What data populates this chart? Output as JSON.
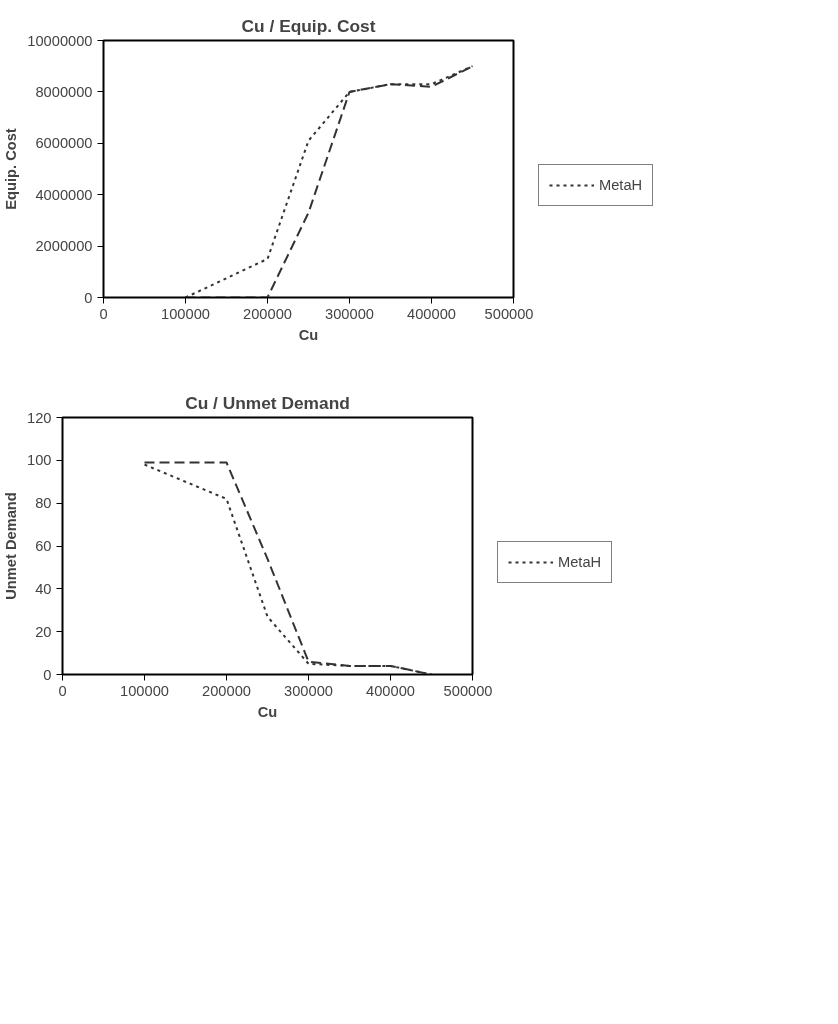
{
  "chart_data": [
    {
      "type": "line",
      "title": "Cu / Equip. Cost",
      "xlabel": "Cu",
      "ylabel": "Equip. Cost",
      "x": [
        100000,
        200000,
        250000,
        300000,
        350000,
        400000,
        450000
      ],
      "xlim": [
        0,
        500000
      ],
      "xticks": [
        0,
        100000,
        200000,
        300000,
        400000,
        500000
      ],
      "ylim": [
        0,
        10000000
      ],
      "yticks": [
        0,
        2000000,
        4000000,
        6000000,
        8000000,
        10000000
      ],
      "grid": false,
      "legend": "right",
      "marker": "none",
      "series": [
        {
          "color": "#333333",
          "line_style": "dashed",
          "values": [
            0,
            0,
            3300000,
            8000000,
            8300000,
            8200000,
            9000000
          ]
        },
        {
          "name": "MetaH",
          "color": "#333333",
          "line_style": "dotted",
          "values": [
            0,
            1500000,
            6100000,
            8000000,
            8300000,
            8300000,
            9000000
          ]
        }
      ]
    },
    {
      "type": "line",
      "title": "Cu / Unmet Demand",
      "xlabel": "Cu",
      "ylabel": "Unmet Demand",
      "x": [
        100000,
        200000,
        250000,
        300000,
        350000,
        400000,
        450000
      ],
      "xlim": [
        0,
        500000
      ],
      "xticks": [
        0,
        100000,
        200000,
        300000,
        400000,
        500000
      ],
      "ylim": [
        0,
        120
      ],
      "yticks": [
        0,
        20,
        40,
        60,
        80,
        100,
        120
      ],
      "grid": false,
      "legend": "right",
      "marker": "none",
      "series": [
        {
          "color": "#333333",
          "line_style": "dashed",
          "values": [
            99,
            99,
            54,
            6,
            4,
            4,
            0
          ]
        },
        {
          "name": "MetaH",
          "color": "#333333",
          "line_style": "dotted",
          "values": [
            98,
            82,
            27,
            5,
            4,
            4,
            0
          ]
        }
      ]
    }
  ]
}
